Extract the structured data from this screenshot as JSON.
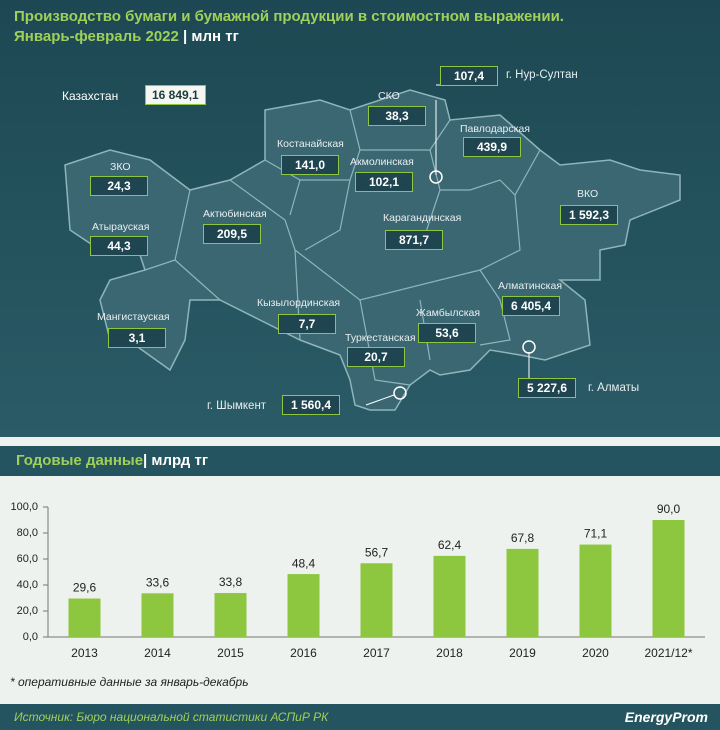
{
  "header": {
    "title": "Производство бумаги и бумажной продукции в стоимостном выражении.",
    "period": "Январь-февраль 2022",
    "unit": "млн тг"
  },
  "map": {
    "regions": [
      {
        "name": "Казахстан",
        "value": "16 849,1"
      },
      {
        "name": "ЗКО",
        "value": "24,3"
      },
      {
        "name": "Атырауская",
        "value": "44,3"
      },
      {
        "name": "Мангистауская",
        "value": "3,1"
      },
      {
        "name": "Актюбинская",
        "value": "209,5"
      },
      {
        "name": "Костанайская",
        "value": "141,0"
      },
      {
        "name": "СКО",
        "value": "38,3"
      },
      {
        "name": "Акмолинская",
        "value": "102,1"
      },
      {
        "name": "Павлодарская",
        "value": "439,9"
      },
      {
        "name": "ВКО",
        "value": "1 592,3"
      },
      {
        "name": "Карагандинская",
        "value": "871,7"
      },
      {
        "name": "Кызылординская",
        "value": "7,7"
      },
      {
        "name": "Жамбылская",
        "value": "53,6"
      },
      {
        "name": "Алматинская",
        "value": "6 405,4"
      },
      {
        "name": "Туркестанская",
        "value": "20,7"
      },
      {
        "name": "г. Шымкент",
        "value": "1 560,4"
      },
      {
        "name": "г. Нур-Султан",
        "value": "107,4"
      },
      {
        "name": "г. Алматы",
        "value": "5 227,6"
      }
    ]
  },
  "section": {
    "title": "Годовые данные",
    "unit": "млрд тг"
  },
  "chart_data": {
    "type": "bar",
    "categories": [
      "2013",
      "2014",
      "2015",
      "2016",
      "2017",
      "2018",
      "2019",
      "2020",
      "2021/12*"
    ],
    "values": [
      29.6,
      33.6,
      33.8,
      48.4,
      56.7,
      62.4,
      67.8,
      71.1,
      90.0
    ],
    "value_labels": [
      "29,6",
      "33,6",
      "33,8",
      "48,4",
      "56,7",
      "62,4",
      "67,8",
      "71,1",
      "90,0"
    ],
    "color": "#8dc63f",
    "ylim": [
      0,
      100
    ],
    "yticks": [
      {
        "value": 0,
        "label": "0,0"
      },
      {
        "value": 20,
        "label": "20,0"
      },
      {
        "value": 40,
        "label": "40,0"
      },
      {
        "value": 60,
        "label": "60,0"
      },
      {
        "value": 80,
        "label": "80,0"
      },
      {
        "value": 100,
        "label": "100,0"
      }
    ],
    "grid": false
  },
  "note": "* оперативные данные за январь-декабрь",
  "footer": {
    "source": "Источник: Бюро национальной статистики АСПиР РК",
    "logo": "EnergyProm"
  }
}
